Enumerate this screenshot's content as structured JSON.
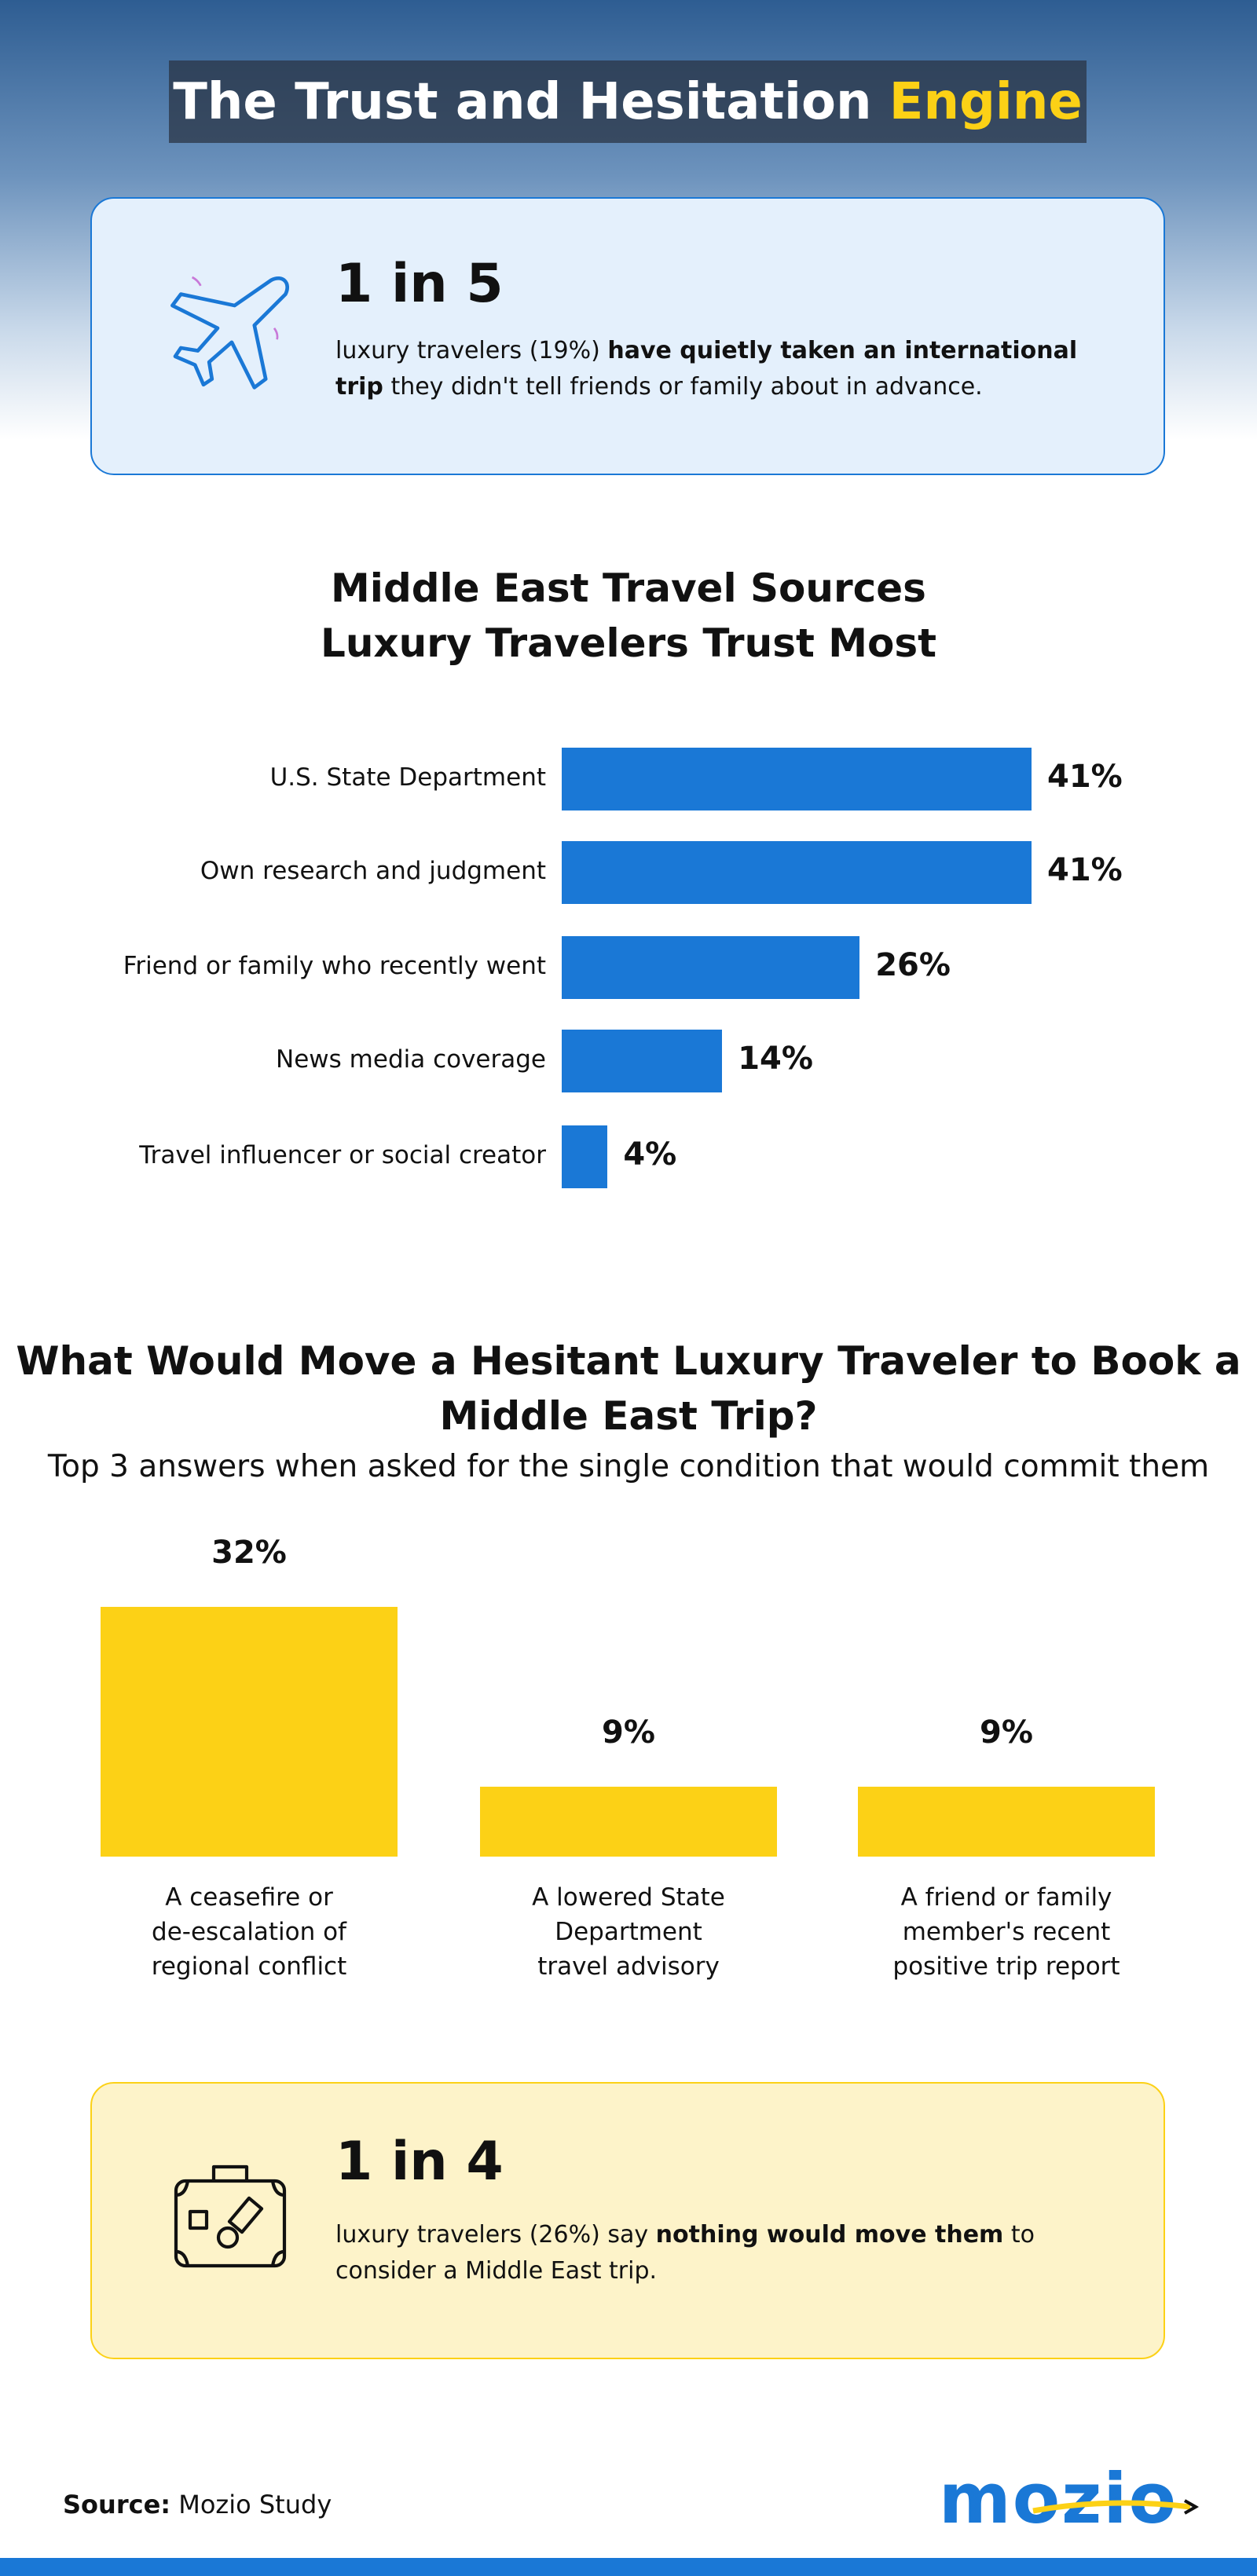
{
  "header": {
    "title_main": "The Trust and Hesitation",
    "title_highlight": "Engine"
  },
  "stat_top": {
    "headline": "1 in 5",
    "text_before": "luxury travelers (19%)",
    "text_bold": "have quietly taken an international trip",
    "text_after": "they didn't tell friends or family about in advance."
  },
  "chart_data": [
    {
      "type": "hbar",
      "title": "Middle East Travel Sources\nLuxury Travelers Trust Most",
      "categories": [
        "U.S. State Department",
        "Own research and judgment",
        "Friend or family who recently went",
        "News media coverage",
        "Travel influencer or social creator"
      ],
      "values": [
        41,
        41,
        26,
        14,
        4
      ],
      "value_labels": [
        "41%",
        "41%",
        "26%",
        "14%",
        "4%"
      ],
      "color": "#1a78d6"
    },
    {
      "type": "bar",
      "title": "What Would Move a Hesitant Luxury Traveler to Book a\nMiddle East Trip?",
      "subtitle": "Top 3 answers when asked for the single condition that would commit them",
      "categories": [
        "A ceasefire or\nde-escalation of\nregional conflict",
        "A lowered State\nDepartment\ntravel advisory",
        "A friend or family\nmember's recent\npositive trip report"
      ],
      "values": [
        32,
        9,
        9
      ],
      "value_labels": [
        "32%",
        "9%",
        "9%"
      ],
      "color": "#fcd116"
    }
  ],
  "stat_bottom": {
    "headline": "1 in 4",
    "text_before": "luxury travelers (26%) say",
    "text_bold": "nothing would move them",
    "text_after": "to consider a Middle East trip."
  },
  "footer": {
    "source_label": "Source:",
    "source": "Mozio Study",
    "logo": "mozio"
  }
}
